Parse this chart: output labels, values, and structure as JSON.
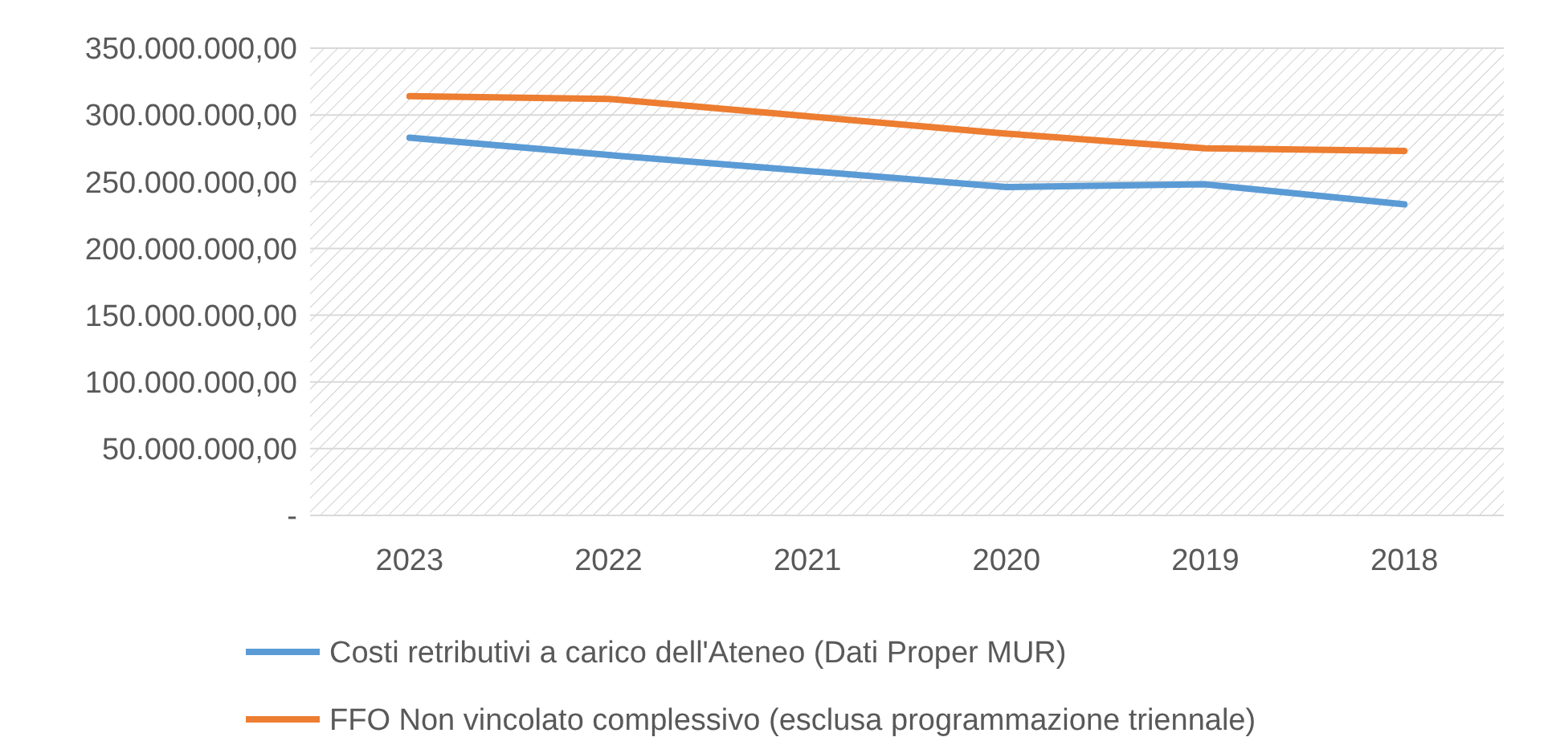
{
  "chart_data": {
    "type": "line",
    "categories": [
      "2023",
      "2022",
      "2021",
      "2020",
      "2019",
      "2018"
    ],
    "series": [
      {
        "name": "Costi retributivi a carico dell'Ateneo (Dati Proper MUR)",
        "color": "#5b9bd5",
        "values": [
          283000000,
          270000000,
          258000000,
          246000000,
          248000000,
          233000000
        ]
      },
      {
        "name": "FFO Non vincolato complessivo (esclusa programmazione triennale)",
        "color": "#ed7d31",
        "values": [
          314000000,
          312000000,
          299000000,
          286000000,
          275000000,
          273000000
        ]
      }
    ],
    "ylim": [
      0,
      350000000
    ],
    "yticks": [
      {
        "value": 0,
        "label": "-"
      },
      {
        "value": 50000000,
        "label": "50.000.000,00"
      },
      {
        "value": 100000000,
        "label": "100.000.000,00"
      },
      {
        "value": 150000000,
        "label": "150.000.000,00"
      },
      {
        "value": 200000000,
        "label": "200.000.000,00"
      },
      {
        "value": 250000000,
        "label": "250.000.000,00"
      },
      {
        "value": 300000000,
        "label": "300.000.000,00"
      },
      {
        "value": 350000000,
        "label": "350.000.000,00"
      }
    ],
    "grid": "y",
    "legend": "bottom",
    "marker": "none",
    "line_style": "solid"
  }
}
